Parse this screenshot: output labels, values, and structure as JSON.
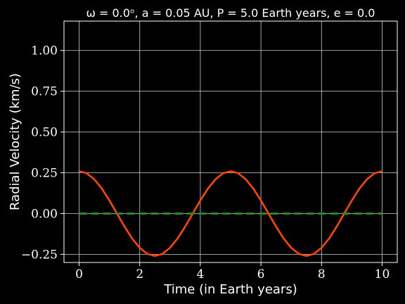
{
  "chart_data": {
    "type": "line",
    "title": "ω = 0.0ᵒ, a = 0.05 AU, P = 5.0 Earth years, e = 0.0",
    "xlabel": "Time (in Earth years)",
    "ylabel": "Radial Velocity (km/s)",
    "xlim": [
      -0.5,
      10.5
    ],
    "ylim": [
      -0.3,
      1.18
    ],
    "xticks": [
      0,
      2,
      4,
      6,
      8,
      10
    ],
    "xtick_labels": [
      "0",
      "2",
      "4",
      "6",
      "8",
      "10"
    ],
    "yticks": [
      -0.25,
      0.0,
      0.25,
      0.5,
      0.75,
      1.0
    ],
    "ytick_labels": [
      "−0.25",
      "0.00",
      "0.25",
      "0.50",
      "0.75",
      "1.00"
    ],
    "grid": true,
    "background": "#000000",
    "series": [
      {
        "style": "solid",
        "color": "#ff4500",
        "x": [
          0,
          0.25,
          0.5,
          0.75,
          1.0,
          1.25,
          1.5,
          1.75,
          2.0,
          2.25,
          2.5,
          2.75,
          3.0,
          3.25,
          3.5,
          3.75,
          4.0,
          4.25,
          4.5,
          4.75,
          5.0,
          5.25,
          5.5,
          5.75,
          6.0,
          6.25,
          6.5,
          6.75,
          7.0,
          7.25,
          7.5,
          7.75,
          8.0,
          8.25,
          8.5,
          8.75,
          9.0,
          9.25,
          9.5,
          9.75,
          10.0
        ],
        "y": [
          0.26,
          0.247,
          0.21,
          0.153,
          0.08,
          0.0,
          -0.08,
          -0.153,
          -0.21,
          -0.247,
          -0.26,
          -0.247,
          -0.21,
          -0.153,
          -0.08,
          0.0,
          0.08,
          0.153,
          0.21,
          0.247,
          0.26,
          0.247,
          0.21,
          0.153,
          0.08,
          0.0,
          -0.08,
          -0.153,
          -0.21,
          -0.247,
          -0.26,
          -0.247,
          -0.21,
          -0.153,
          -0.08,
          0.0,
          0.08,
          0.153,
          0.21,
          0.247,
          0.26
        ]
      },
      {
        "style": "dashed",
        "color": "#228b22",
        "x": [
          0,
          10
        ],
        "y": [
          0.0,
          0.0
        ]
      }
    ]
  }
}
